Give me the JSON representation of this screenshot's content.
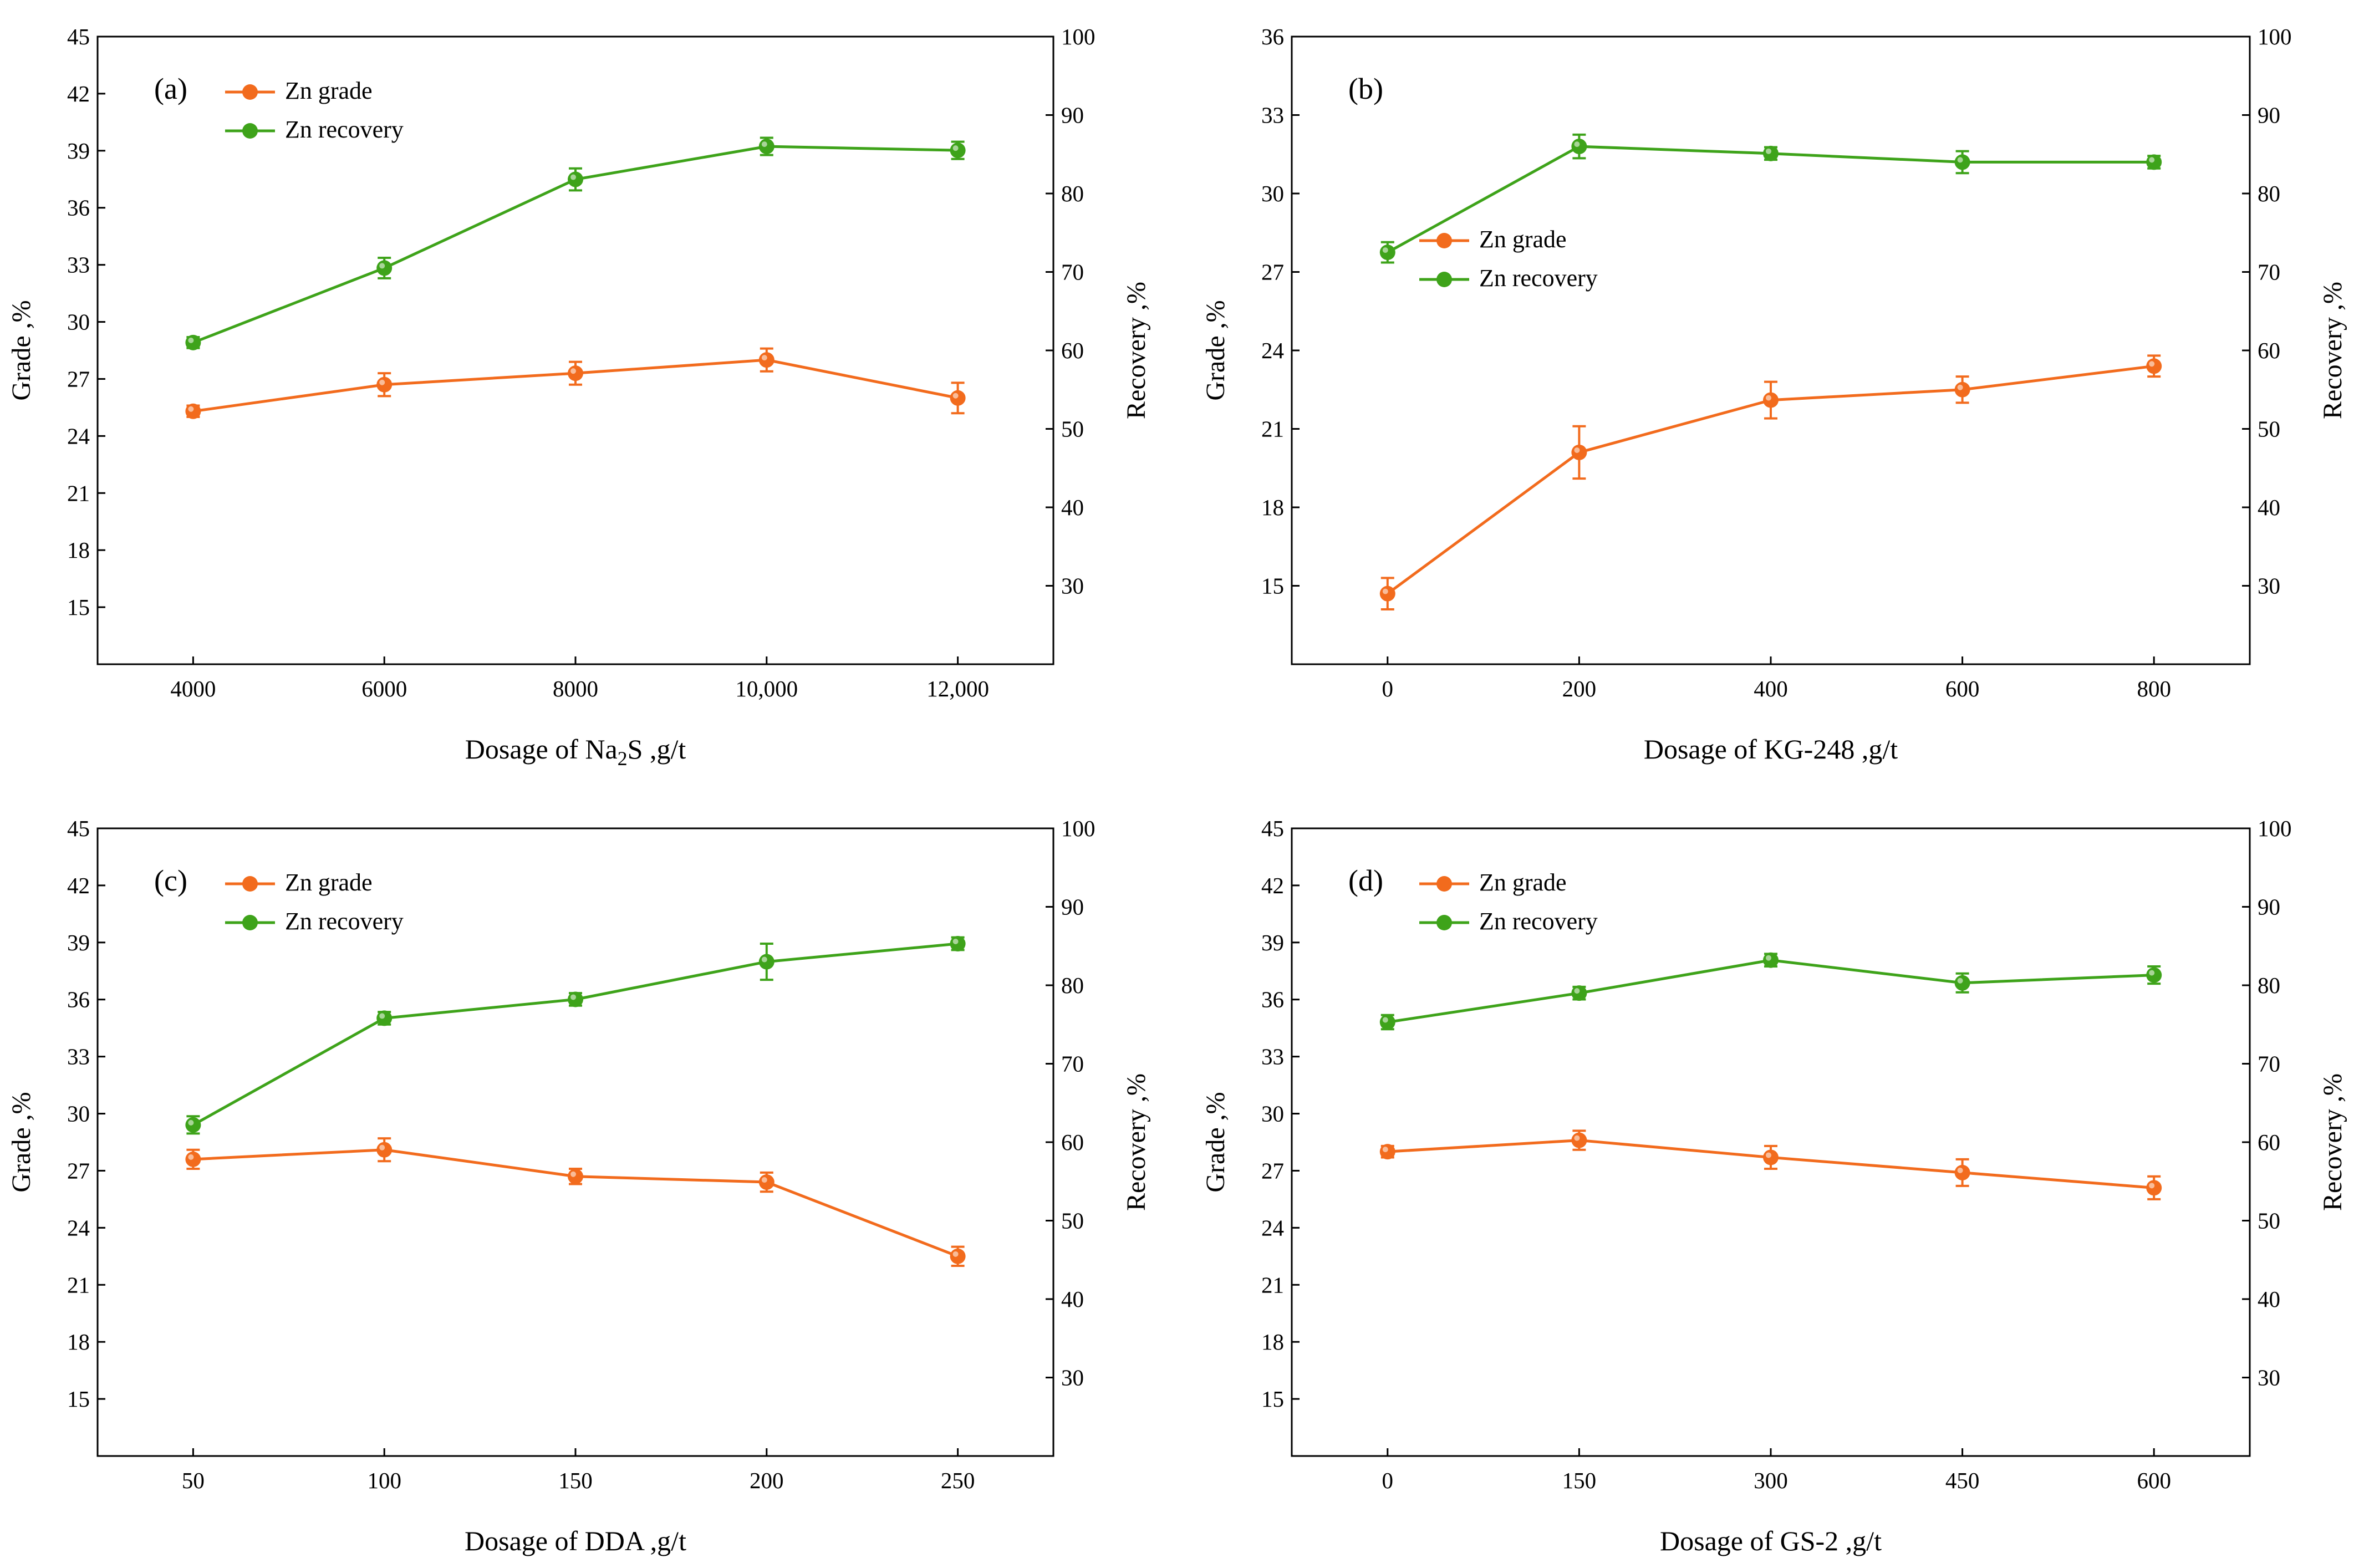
{
  "figure": {
    "background": "#ffffff"
  },
  "colors": {
    "grade": "#f26b1d",
    "recovery": "#3ea31a"
  },
  "chart_data": [
    {
      "type": "line",
      "panel_label": "(a)",
      "xlabel_prefix": "Dosage of Na",
      "xlabel_sub": "2",
      "xlabel_suffix": "S ,g/t",
      "ylabel": "Grade ,%",
      "y2label": "Recovery ,%",
      "categories": [
        "4000",
        "6000",
        "8000",
        "10,000",
        "12,000"
      ],
      "ylim": [
        12,
        45
      ],
      "yticks": [
        "15",
        "18",
        "21",
        "24",
        "27",
        "30",
        "33",
        "36",
        "39",
        "42",
        "45"
      ],
      "y2lim": [
        20,
        100
      ],
      "y2ticks": [
        "30",
        "40",
        "50",
        "60",
        "70",
        "80",
        "90",
        "100"
      ],
      "legend_position": "top-left",
      "series": [
        {
          "name": "Zn grade",
          "axis": "left",
          "values": [
            25.3,
            26.7,
            27.3,
            28.0,
            26.0
          ],
          "errors": [
            0.3,
            0.6,
            0.6,
            0.6,
            0.8
          ]
        },
        {
          "name": "Zn recovery",
          "axis": "right",
          "values": [
            61.0,
            70.5,
            81.8,
            86.0,
            85.5
          ],
          "errors": [
            0.7,
            1.3,
            1.4,
            1.1,
            1.1
          ]
        }
      ]
    },
    {
      "type": "line",
      "panel_label": "(b)",
      "xlabel_prefix": "Dosage of KG-248 ,g/t",
      "xlabel_sub": "",
      "xlabel_suffix": "",
      "ylabel": "Grade ,%",
      "y2label": "Recovery ,%",
      "categories": [
        "0",
        "200",
        "400",
        "600",
        "800"
      ],
      "ylim": [
        12,
        36
      ],
      "yticks": [
        "15",
        "18",
        "21",
        "24",
        "27",
        "30",
        "33",
        "36"
      ],
      "y2lim": [
        20,
        100
      ],
      "y2ticks": [
        "30",
        "40",
        "50",
        "60",
        "70",
        "80",
        "90",
        "100"
      ],
      "legend_position": "center-left",
      "series": [
        {
          "name": "Zn grade",
          "axis": "left",
          "values": [
            14.7,
            20.1,
            22.1,
            22.5,
            23.4
          ],
          "errors": [
            0.6,
            1.0,
            0.7,
            0.5,
            0.4
          ]
        },
        {
          "name": "Zn recovery",
          "axis": "right",
          "values": [
            72.5,
            86.0,
            85.1,
            84.0,
            84.0
          ],
          "errors": [
            1.3,
            1.5,
            0.8,
            1.4,
            0.8
          ]
        }
      ]
    },
    {
      "type": "line",
      "panel_label": "(c)",
      "xlabel_prefix": "Dosage of DDA ,g/t",
      "xlabel_sub": "",
      "xlabel_suffix": "",
      "ylabel": "Grade ,%",
      "y2label": "Recovery ,%",
      "categories": [
        "50",
        "100",
        "150",
        "200",
        "250"
      ],
      "ylim": [
        12,
        45
      ],
      "yticks": [
        "15",
        "18",
        "21",
        "24",
        "27",
        "30",
        "33",
        "36",
        "39",
        "42",
        "45"
      ],
      "y2lim": [
        20,
        100
      ],
      "y2ticks": [
        "30",
        "40",
        "50",
        "60",
        "70",
        "80",
        "90",
        "100"
      ],
      "legend_position": "top-left",
      "series": [
        {
          "name": "Zn grade",
          "axis": "left",
          "values": [
            27.6,
            28.1,
            26.7,
            26.4,
            22.5
          ],
          "errors": [
            0.5,
            0.6,
            0.4,
            0.5,
            0.5
          ]
        },
        {
          "name": "Zn recovery",
          "axis": "right",
          "values": [
            62.2,
            75.8,
            78.2,
            83.0,
            85.3
          ],
          "errors": [
            1.1,
            0.8,
            0.8,
            2.3,
            0.8
          ]
        }
      ]
    },
    {
      "type": "line",
      "panel_label": "(d)",
      "xlabel_prefix": "Dosage of GS-2 ,g/t",
      "xlabel_sub": "",
      "xlabel_suffix": "",
      "ylabel": "Grade ,%",
      "y2label": "Recovery ,%",
      "categories": [
        "0",
        "150",
        "300",
        "450",
        "600"
      ],
      "ylim": [
        12,
        45
      ],
      "yticks": [
        "15",
        "18",
        "21",
        "24",
        "27",
        "30",
        "33",
        "36",
        "39",
        "42",
        "45"
      ],
      "y2lim": [
        20,
        100
      ],
      "y2ticks": [
        "30",
        "40",
        "50",
        "60",
        "70",
        "80",
        "90",
        "100"
      ],
      "legend_position": "top-left",
      "series": [
        {
          "name": "Zn grade",
          "axis": "left",
          "values": [
            28.0,
            28.6,
            27.7,
            26.9,
            26.1
          ],
          "errors": [
            0.3,
            0.5,
            0.6,
            0.7,
            0.6
          ]
        },
        {
          "name": "Zn recovery",
          "axis": "right",
          "values": [
            75.3,
            79.0,
            83.2,
            80.3,
            81.3
          ],
          "errors": [
            0.9,
            0.8,
            0.8,
            1.2,
            1.1
          ]
        }
      ]
    }
  ]
}
